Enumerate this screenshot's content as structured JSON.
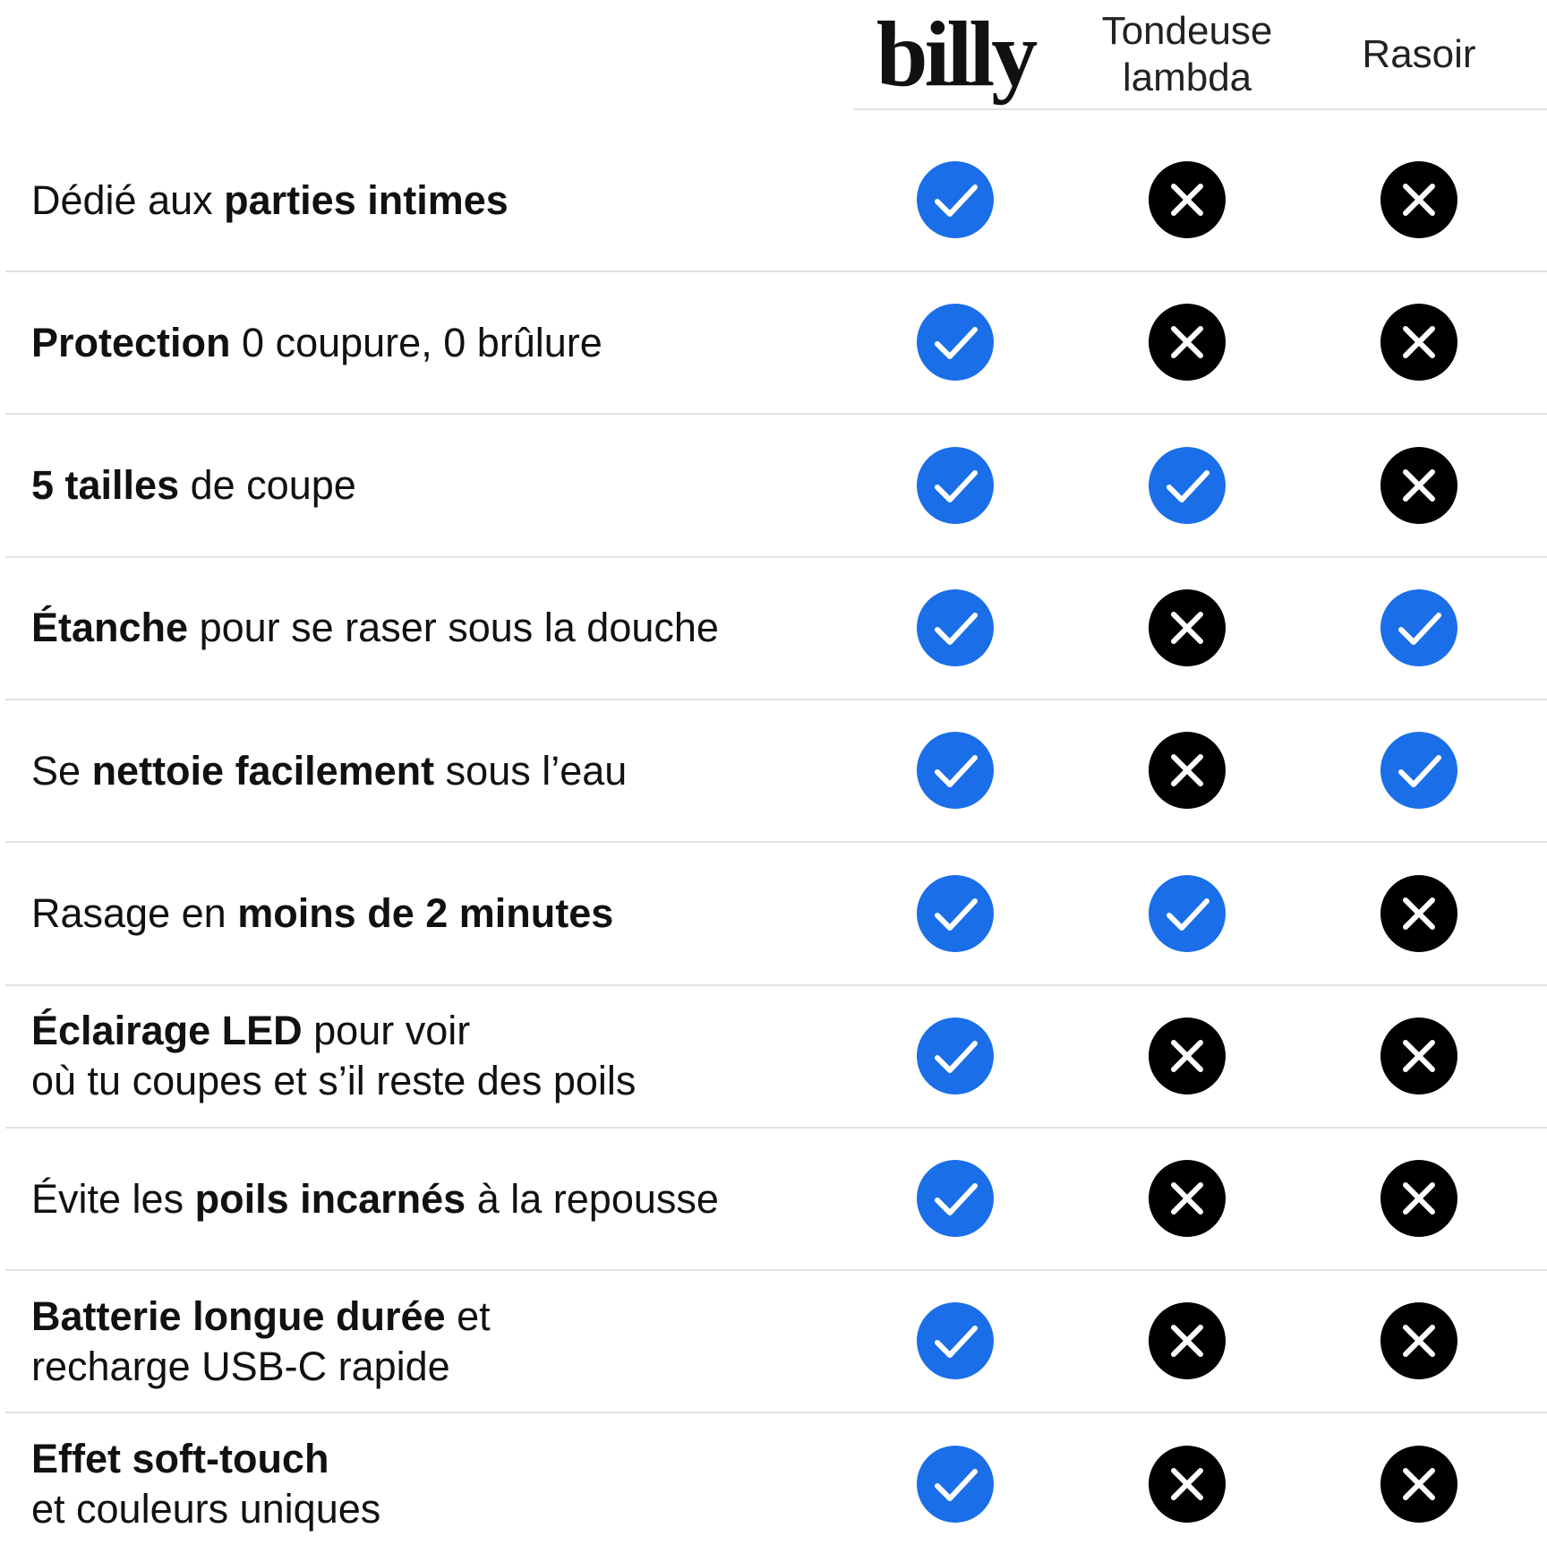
{
  "header": {
    "columns": [
      {
        "lines": [
          "billy"
        ]
      },
      {
        "lines": [
          "Tondeuse",
          "lambda"
        ]
      },
      {
        "lines": [
          "Rasoir"
        ]
      }
    ]
  },
  "rows": [
    {
      "lines": [
        [
          {
            "text": "Dédié aux",
            "bold": false
          },
          {
            "text": "parties intimes",
            "bold": true
          }
        ]
      ],
      "values": [
        true,
        false,
        false
      ]
    },
    {
      "lines": [
        [
          {
            "text": "Protection",
            "bold": true
          },
          {
            "text": "0 coupure, 0 brûlure",
            "bold": false
          }
        ]
      ],
      "values": [
        true,
        false,
        false
      ]
    },
    {
      "lines": [
        [
          {
            "text": "5 tailles",
            "bold": true
          },
          {
            "text": "de coupe",
            "bold": false
          }
        ]
      ],
      "values": [
        true,
        true,
        false
      ]
    },
    {
      "lines": [
        [
          {
            "text": "Étanche",
            "bold": true
          },
          {
            "text": "pour se raser sous la douche",
            "bold": false
          }
        ]
      ],
      "values": [
        true,
        false,
        true
      ]
    },
    {
      "lines": [
        [
          {
            "text": "Se",
            "bold": false
          },
          {
            "text": "nettoie facilement",
            "bold": true
          },
          {
            "text": "sous l’eau",
            "bold": false
          }
        ]
      ],
      "values": [
        true,
        false,
        true
      ]
    },
    {
      "lines": [
        [
          {
            "text": "Rasage en",
            "bold": false
          },
          {
            "text": "moins de 2 minutes",
            "bold": true
          }
        ]
      ],
      "values": [
        true,
        true,
        false
      ]
    },
    {
      "lines": [
        [
          {
            "text": "Éclairage LED",
            "bold": true
          },
          {
            "text": "pour voir",
            "bold": false
          }
        ],
        [
          {
            "text": "où tu coupes et s’il reste des poils",
            "bold": false
          }
        ]
      ],
      "values": [
        true,
        false,
        false
      ]
    },
    {
      "lines": [
        [
          {
            "text": "Évite les",
            "bold": false
          },
          {
            "text": "poils incarnés",
            "bold": true
          },
          {
            "text": "à la repousse",
            "bold": false
          }
        ]
      ],
      "values": [
        true,
        false,
        false
      ]
    },
    {
      "lines": [
        [
          {
            "text": "Batterie longue durée",
            "bold": true
          },
          {
            "text": "et",
            "bold": false
          }
        ],
        [
          {
            "text": "recharge USB-C rapide",
            "bold": false
          }
        ]
      ],
      "values": [
        true,
        false,
        false
      ]
    },
    {
      "lines": [
        [
          {
            "text": "Effet soft-touch",
            "bold": true
          }
        ],
        [
          {
            "text": "et couleurs uniques",
            "bold": false
          }
        ]
      ],
      "values": [
        true,
        false,
        false
      ]
    }
  ]
}
